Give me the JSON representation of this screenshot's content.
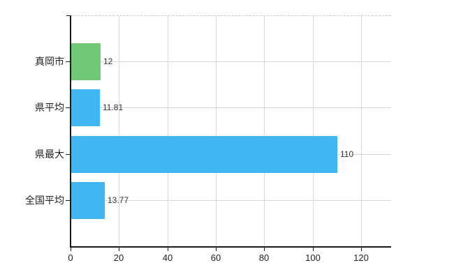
{
  "chart_data": {
    "type": "bar",
    "orientation": "horizontal",
    "title": "",
    "categories": [
      "真岡市",
      "県平均",
      "県最大",
      "全国平均"
    ],
    "values": [
      12,
      11.81,
      110,
      13.77
    ],
    "value_labels": [
      "12",
      "11.81",
      "110",
      "13.77"
    ],
    "series": [
      {
        "name": "",
        "values": [
          12,
          11.81,
          110,
          13.77
        ]
      }
    ],
    "bar_colors": [
      "#6ec874",
      "#41b6f0",
      "#41b6f0",
      "#41b6f0"
    ],
    "x_ticks": [
      0,
      20,
      40,
      60,
      80,
      100,
      120
    ],
    "x_tick_labels": [
      "0",
      "20",
      "40",
      "60",
      "80",
      "100",
      "120"
    ],
    "xlim": [
      0,
      132
    ],
    "xlabel": "",
    "ylabel": "",
    "grid": true,
    "legend": false
  },
  "colors": {
    "background": "#ffffff",
    "axis": "#1a1a1a",
    "gridline": "#d7d7d7",
    "top_border": "#c6c6c6",
    "category_text": "#222222",
    "value_text": "#333333",
    "bar_green": "#6ec874",
    "bar_blue": "#41b6f0"
  }
}
